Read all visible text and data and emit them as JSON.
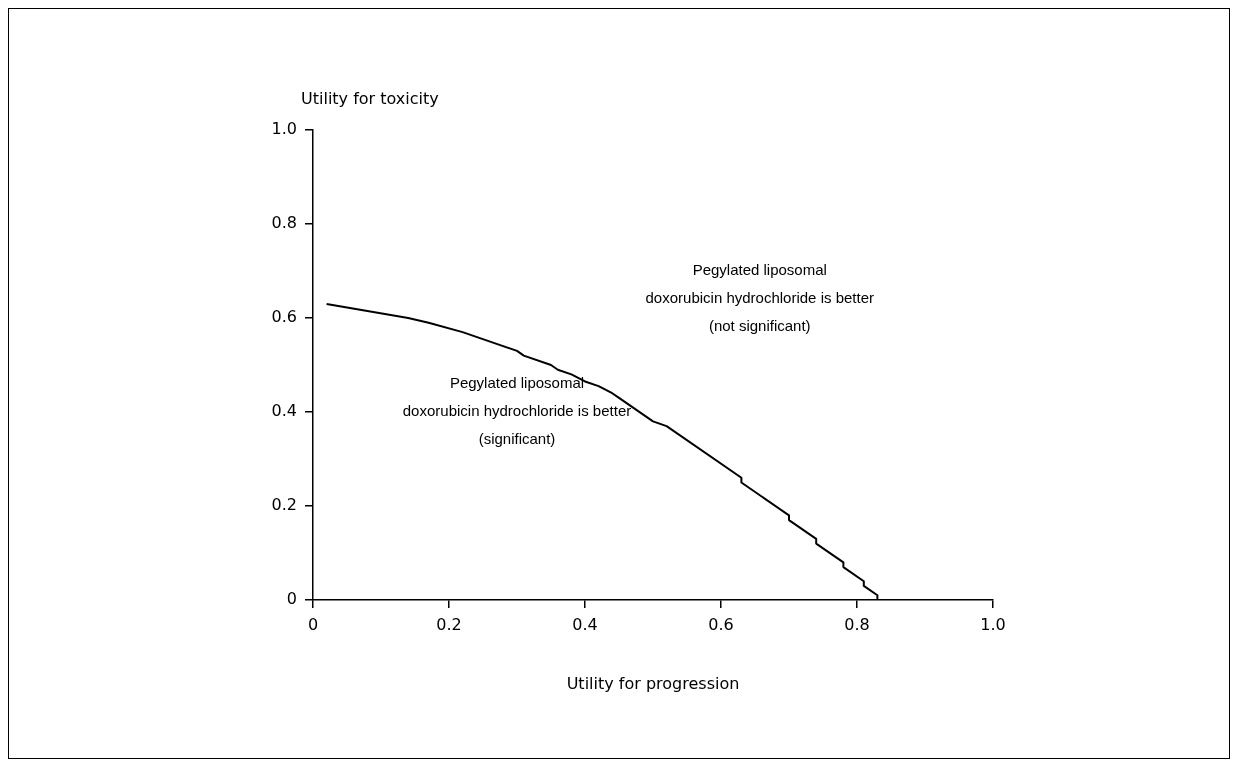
{
  "chart_data": {
    "type": "line",
    "xlabel": "Utility for progression",
    "ylabel": "Utility for toxicity",
    "x": [
      0.02,
      0.14,
      0.17,
      0.22,
      0.3,
      0.31,
      0.35,
      0.36,
      0.38,
      0.4,
      0.42,
      0.44,
      0.45,
      0.5,
      0.52,
      0.63,
      0.63,
      0.7,
      0.7,
      0.74,
      0.74,
      0.78,
      0.78,
      0.81,
      0.81,
      0.83,
      0.83
    ],
    "values": [
      0.63,
      0.6,
      0.59,
      0.57,
      0.53,
      0.52,
      0.5,
      0.49,
      0.48,
      0.465,
      0.455,
      0.44,
      0.43,
      0.38,
      0.37,
      0.26,
      0.25,
      0.18,
      0.17,
      0.13,
      0.12,
      0.08,
      0.07,
      0.04,
      0.03,
      0.01,
      0.0
    ],
    "color": "#000000",
    "marker": "none",
    "line_style": "solid",
    "legend": false,
    "xlim": [
      0,
      1
    ],
    "xticks": [
      0,
      0.2,
      0.4,
      0.6,
      0.8,
      {
        "value": 1,
        "label": "1.0"
      }
    ],
    "ylim": [
      0,
      1
    ],
    "yticks": [
      0,
      0.2,
      0.4,
      0.6,
      0.8,
      {
        "value": 1,
        "label": "1.0"
      }
    ],
    "annotations": [
      "Pegylated liposomal\ndoxorubicin hydrochloride is better\n(not significant)",
      "Pegylated liposomal\ndoxorubicin hydrochloride is better\n(significant)"
    ]
  }
}
